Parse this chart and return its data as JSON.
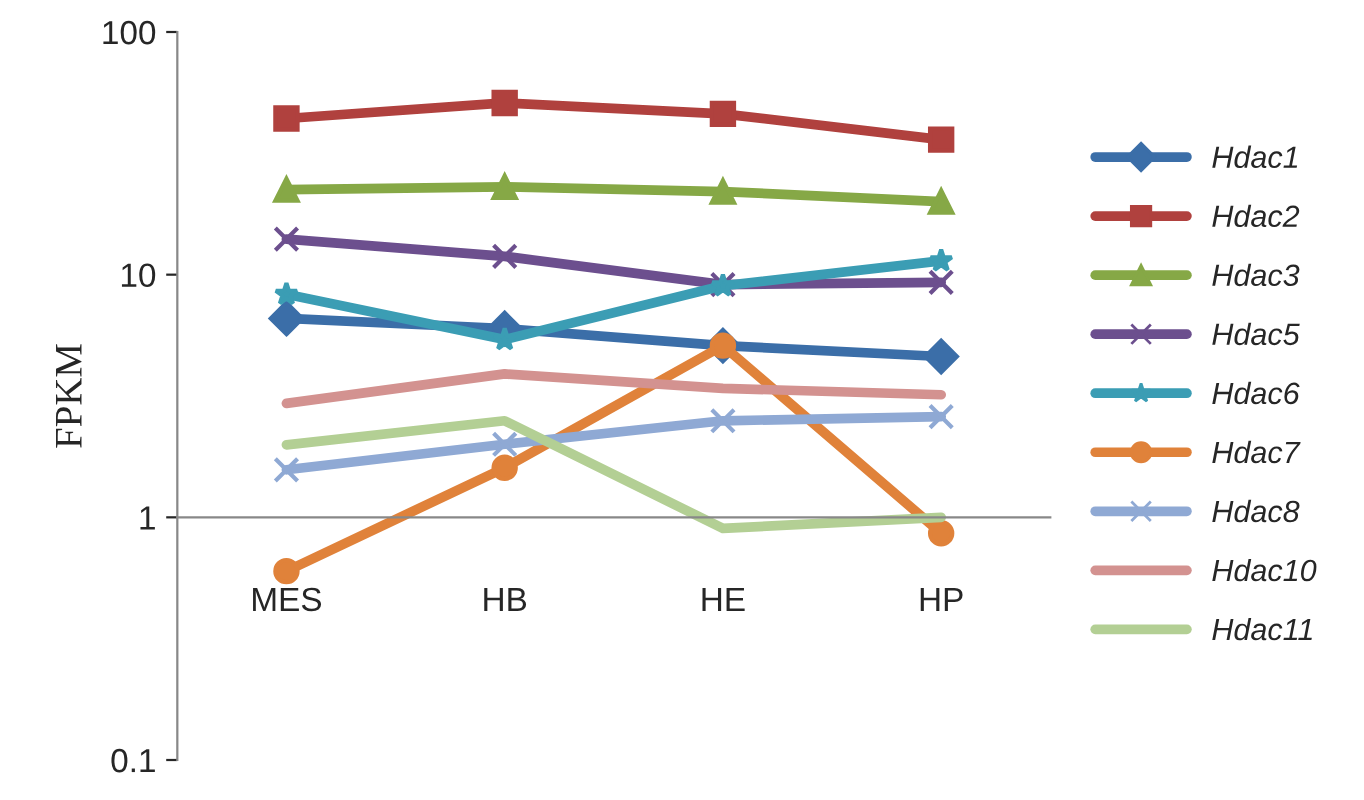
{
  "chart_data": {
    "type": "line",
    "ylabel": "FPKM",
    "categories": [
      "MES",
      "HB",
      "HE",
      "HP"
    ],
    "log": "y",
    "ylim": [
      0.1,
      100
    ],
    "yticks": [
      0.1,
      1,
      10,
      100
    ],
    "grid": false,
    "legend": "right",
    "series": [
      {
        "name": "Hdac1",
        "color": "#3b6ea8",
        "marker": "diamond",
        "values": [
          6.6,
          6.0,
          5.1,
          4.6
        ]
      },
      {
        "name": "Hdac2",
        "color": "#b0413e",
        "marker": "square",
        "values": [
          44,
          51,
          46,
          36
        ]
      },
      {
        "name": "Hdac3",
        "color": "#86a846",
        "marker": "triangle",
        "values": [
          22.4,
          23,
          22,
          20
        ]
      },
      {
        "name": "Hdac5",
        "color": "#6c4f8e",
        "marker": "cross",
        "values": [
          14,
          11.9,
          9.1,
          9.3
        ]
      },
      {
        "name": "Hdac6",
        "color": "#3b9db4",
        "marker": "star",
        "values": [
          8.3,
          5.4,
          9.0,
          11.4
        ]
      },
      {
        "name": "Hdac7",
        "color": "#e0823a",
        "marker": "circle",
        "values": [
          0.6,
          1.6,
          5.1,
          0.86
        ]
      },
      {
        "name": "Hdac8",
        "color": "#8fa9d4",
        "marker": "cross",
        "values": [
          1.57,
          2.0,
          2.5,
          2.6
        ]
      },
      {
        "name": "Hdac10",
        "color": "#d39290",
        "marker": "none",
        "values": [
          2.95,
          3.9,
          3.4,
          3.2
        ]
      },
      {
        "name": "Hdac11",
        "color": "#b3cf94",
        "marker": "none",
        "values": [
          1.99,
          2.5,
          0.9,
          1.0
        ]
      }
    ]
  }
}
